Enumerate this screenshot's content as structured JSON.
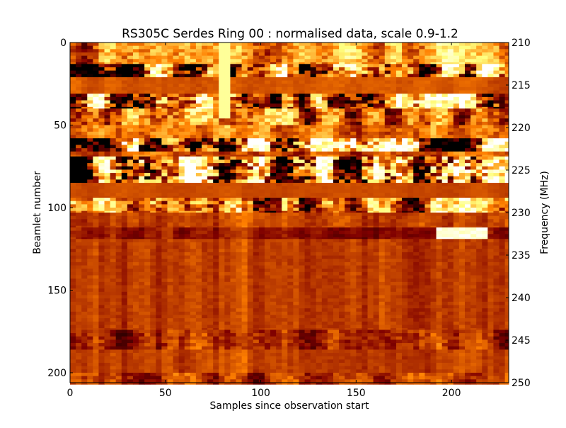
{
  "chart_data": {
    "type": "heatmap",
    "title": "RS305C Serdes Ring 00 : normalised data, scale 0.9-1.2",
    "xlabel": "Samples since observation start",
    "ylabel": "Beamlet number",
    "y2label": "Frequency (MHz)",
    "xlim": [
      0,
      230
    ],
    "ylim": [
      206,
      0
    ],
    "y2lim": [
      250,
      210
    ],
    "xticks": [
      "0",
      "50",
      "100",
      "150",
      "200"
    ],
    "xtick_values": [
      0,
      50,
      100,
      150,
      200
    ],
    "yticks": [
      "0",
      "50",
      "100",
      "150",
      "200"
    ],
    "ytick_values": [
      0,
      50,
      100,
      150,
      200
    ],
    "y2ticks": [
      "210",
      "215",
      "220",
      "225",
      "230",
      "235",
      "240",
      "245",
      "250"
    ],
    "y2tick_values": [
      210,
      215,
      220,
      225,
      230,
      235,
      240,
      245,
      250
    ],
    "value_range": [
      0.9,
      1.2
    ],
    "colormap": "afmhot",
    "bands": [
      {
        "rows": [
          0,
          13
        ],
        "level": 0.55,
        "contrast": 0.5
      },
      {
        "rows": [
          13,
          21
        ],
        "level": 0.5,
        "contrast": 1.2
      },
      {
        "rows": [
          21,
          31
        ],
        "level": 0.42,
        "contrast": 0.08
      },
      {
        "rows": [
          31,
          40
        ],
        "level": 0.5,
        "contrast": 1.2
      },
      {
        "rows": [
          40,
          50
        ],
        "level": 0.45,
        "contrast": 0.6
      },
      {
        "rows": [
          50,
          58
        ],
        "level": 0.45,
        "contrast": 0.35
      },
      {
        "rows": [
          58,
          66
        ],
        "level": 0.45,
        "contrast": 1.6
      },
      {
        "rows": [
          66,
          69
        ],
        "level": 0.4,
        "contrast": 0.3
      },
      {
        "rows": [
          69,
          85
        ],
        "level": 0.45,
        "contrast": 1.6
      },
      {
        "rows": [
          85,
          94
        ],
        "level": 0.4,
        "contrast": 0.05
      },
      {
        "rows": [
          94,
          103
        ],
        "level": 0.45,
        "contrast": 0.9
      },
      {
        "rows": [
          103,
          112
        ],
        "level": 0.38,
        "contrast": 0.15
      },
      {
        "rows": [
          112,
          119
        ],
        "level": 0.28,
        "contrast": 0.15
      },
      {
        "rows": [
          119,
          174
        ],
        "level": 0.37,
        "contrast": 0.12
      },
      {
        "rows": [
          174,
          186
        ],
        "level": 0.36,
        "contrast": 0.3
      },
      {
        "rows": [
          186,
          200
        ],
        "level": 0.37,
        "contrast": 0.1
      },
      {
        "rows": [
          200,
          207
        ],
        "level": 0.36,
        "contrast": 0.3
      }
    ],
    "features": [
      {
        "type": "bright-segment",
        "rows": [
          112,
          119
        ],
        "x": [
          192,
          218
        ]
      },
      {
        "type": "bright-column",
        "x": [
          79,
          81
        ],
        "rows": [
          0,
          45
        ]
      },
      {
        "type": "bright-streaks",
        "x": [
          78,
          92
        ],
        "rows": [
          95,
          175
        ]
      }
    ]
  }
}
